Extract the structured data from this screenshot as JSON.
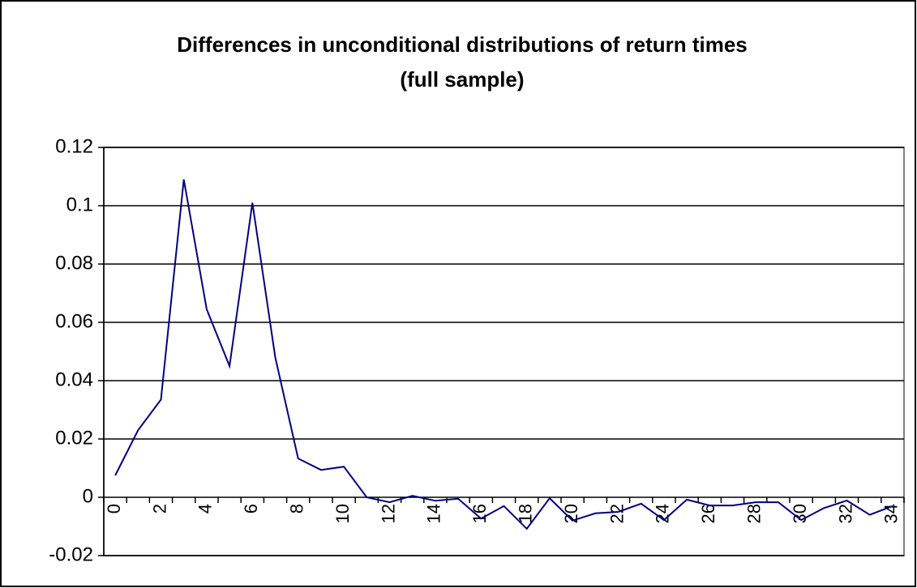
{
  "chart_data": {
    "type": "line",
    "title": "Differences in unconditional distributions of return times",
    "subtitle": "(full sample)",
    "categories": [
      "0",
      null,
      "2",
      null,
      "4",
      null,
      "6",
      null,
      "8",
      null,
      "10",
      null,
      "12",
      null,
      "14",
      null,
      "16",
      null,
      "18",
      null,
      "20",
      null,
      "22",
      null,
      "24",
      null,
      "26",
      null,
      "28",
      null,
      "30",
      null,
      "32",
      null,
      "34"
    ],
    "series": [
      {
        "color": "#000080",
        "values": [
          0.0075,
          0.023,
          0.0335,
          0.109,
          0.0645,
          0.045,
          0.101,
          0.048,
          0.0133,
          0.0094,
          0.0105,
          0,
          -0.0017,
          0.0005,
          -0.0012,
          -0.0005,
          -0.0073,
          -0.003,
          -0.0108,
          -0.0003,
          -0.008,
          -0.0055,
          -0.005,
          -0.0022,
          -0.0078,
          -0.0008,
          -0.0028,
          -0.0028,
          -0.0017,
          -0.0017,
          -0.0078,
          -0.0037,
          -0.0011,
          -0.006,
          -0.003
        ]
      }
    ],
    "ylim": [
      -0.02,
      0.12
    ],
    "yticks": [
      -0.02,
      0,
      0.02,
      0.04,
      0.06,
      0.08,
      0.1,
      0.12
    ],
    "grid": true
  }
}
